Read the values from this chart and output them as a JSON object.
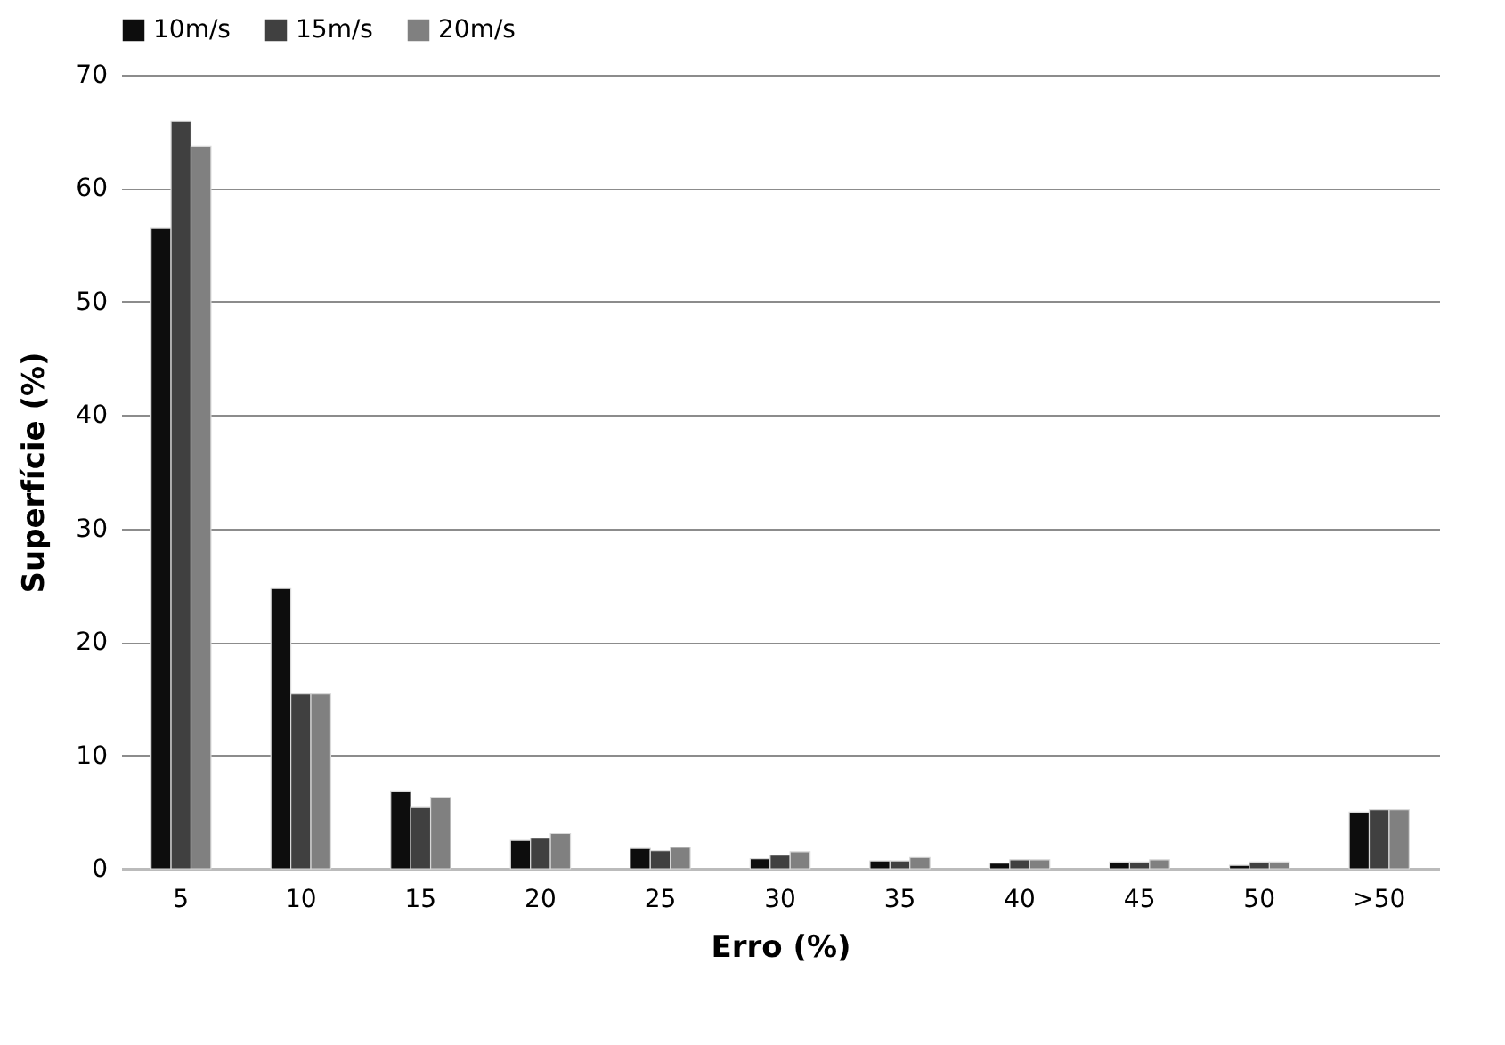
{
  "chart_data": {
    "type": "bar",
    "xlabel": "Erro (%)",
    "ylabel": "Superfície (%)",
    "categories": [
      "5",
      "10",
      "15",
      "20",
      "25",
      "30",
      "35",
      "40",
      "45",
      "50",
      ">50"
    ],
    "series": [
      {
        "name": "10m/s",
        "color": "#0d0d0d",
        "values": [
          56.5,
          24.7,
          6.8,
          2.5,
          1.8,
          0.9,
          0.7,
          0.5,
          0.6,
          0.3,
          5.0
        ]
      },
      {
        "name": "15m/s",
        "color": "#404040",
        "values": [
          65.9,
          15.4,
          5.4,
          2.7,
          1.6,
          1.2,
          0.7,
          0.8,
          0.6,
          0.6,
          5.2
        ]
      },
      {
        "name": "20m/s",
        "color": "#808080",
        "values": [
          63.7,
          15.4,
          6.3,
          3.1,
          1.9,
          1.5,
          1.0,
          0.8,
          0.8,
          0.6,
          5.2
        ]
      }
    ],
    "ylim": [
      0,
      70
    ],
    "yticks": [
      0,
      10,
      20,
      30,
      40,
      50,
      60,
      70
    ],
    "grid": "y",
    "legend": "top"
  }
}
